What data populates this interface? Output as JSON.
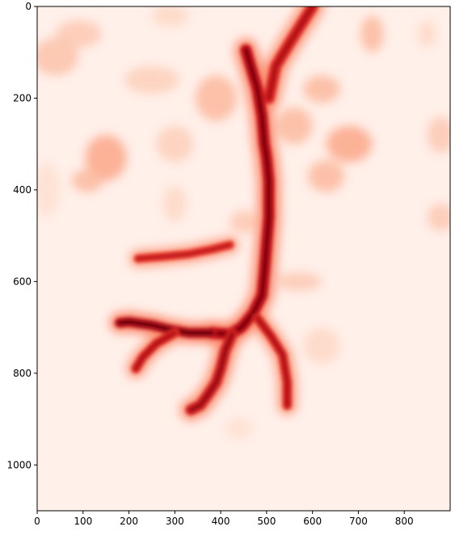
{
  "chart_data": {
    "type": "heatmap",
    "colormap": "Reds",
    "background_color": "#fff0ea",
    "title": "",
    "xlabel": "",
    "ylabel": "",
    "xlim": [
      0,
      900
    ],
    "ylim": [
      1100,
      0
    ],
    "x_ticks": [
      0,
      100,
      200,
      300,
      400,
      500,
      600,
      700,
      800
    ],
    "y_ticks": [
      0,
      200,
      400,
      600,
      800,
      1000
    ],
    "x_tick_labels": [
      "0",
      "100",
      "200",
      "300",
      "400",
      "500",
      "600",
      "700",
      "800"
    ],
    "y_tick_labels": [
      "0",
      "200",
      "400",
      "600",
      "800",
      "1000"
    ],
    "channels": [
      {
        "points": [
          [
            600,
            0
          ],
          [
            575,
            40
          ],
          [
            550,
            80
          ],
          [
            520,
            130
          ],
          [
            505,
            200
          ]
        ],
        "width": 16,
        "intensity": 0.85
      },
      {
        "points": [
          [
            455,
            95
          ],
          [
            480,
            180
          ],
          [
            490,
            240
          ],
          [
            495,
            300
          ],
          [
            500,
            330
          ],
          [
            505,
            380
          ],
          [
            505,
            420
          ],
          [
            505,
            460
          ],
          [
            500,
            520
          ],
          [
            495,
            580
          ],
          [
            490,
            630
          ],
          [
            470,
            670
          ],
          [
            445,
            700
          ],
          [
            420,
            715
          ],
          [
            380,
            712
          ]
        ],
        "width": 16,
        "intensity": 0.95
      },
      {
        "points": [
          [
            380,
            712
          ],
          [
            330,
            712
          ],
          [
            290,
            705
          ],
          [
            250,
            695
          ],
          [
            200,
            688
          ],
          [
            180,
            690
          ]
        ],
        "width": 14,
        "intensity": 1.0
      },
      {
        "points": [
          [
            300,
            712
          ],
          [
            260,
            735
          ],
          [
            230,
            765
          ],
          [
            215,
            790
          ]
        ],
        "width": 13,
        "intensity": 0.85
      },
      {
        "points": [
          [
            425,
            715
          ],
          [
            410,
            750
          ],
          [
            400,
            790
          ],
          [
            390,
            820
          ],
          [
            370,
            850
          ],
          [
            355,
            870
          ],
          [
            335,
            880
          ]
        ],
        "width": 15,
        "intensity": 0.9
      },
      {
        "points": [
          [
            220,
            550
          ],
          [
            280,
            545
          ],
          [
            330,
            540
          ],
          [
            380,
            530
          ],
          [
            420,
            520
          ]
        ],
        "width": 12,
        "intensity": 0.8
      },
      {
        "points": [
          [
            480,
            680
          ],
          [
            510,
            720
          ],
          [
            535,
            760
          ],
          [
            545,
            820
          ],
          [
            545,
            870
          ]
        ],
        "width": 13,
        "intensity": 0.85
      }
    ],
    "patches": [
      {
        "x": 150,
        "y": 330,
        "rx": 45,
        "ry": 50,
        "intensity": 0.3
      },
      {
        "x": 110,
        "y": 380,
        "rx": 35,
        "ry": 25,
        "intensity": 0.25
      },
      {
        "x": 390,
        "y": 200,
        "rx": 45,
        "ry": 50,
        "intensity": 0.25
      },
      {
        "x": 560,
        "y": 260,
        "rx": 40,
        "ry": 40,
        "intensity": 0.25
      },
      {
        "x": 620,
        "y": 180,
        "rx": 40,
        "ry": 30,
        "intensity": 0.25
      },
      {
        "x": 680,
        "y": 300,
        "rx": 50,
        "ry": 40,
        "intensity": 0.3
      },
      {
        "x": 630,
        "y": 370,
        "rx": 40,
        "ry": 35,
        "intensity": 0.25
      },
      {
        "x": 40,
        "y": 110,
        "rx": 50,
        "ry": 40,
        "intensity": 0.22
      },
      {
        "x": 90,
        "y": 60,
        "rx": 50,
        "ry": 30,
        "intensity": 0.2
      },
      {
        "x": 250,
        "y": 160,
        "rx": 60,
        "ry": 30,
        "intensity": 0.18
      },
      {
        "x": 300,
        "y": 300,
        "rx": 40,
        "ry": 40,
        "intensity": 0.18
      },
      {
        "x": 730,
        "y": 60,
        "rx": 25,
        "ry": 40,
        "intensity": 0.25
      },
      {
        "x": 880,
        "y": 280,
        "rx": 30,
        "ry": 40,
        "intensity": 0.2
      },
      {
        "x": 880,
        "y": 460,
        "rx": 30,
        "ry": 30,
        "intensity": 0.2
      },
      {
        "x": 570,
        "y": 600,
        "rx": 50,
        "ry": 20,
        "intensity": 0.2
      },
      {
        "x": 620,
        "y": 740,
        "rx": 40,
        "ry": 40,
        "intensity": 0.15
      },
      {
        "x": 450,
        "y": 470,
        "rx": 30,
        "ry": 25,
        "intensity": 0.2
      },
      {
        "x": 300,
        "y": 430,
        "rx": 25,
        "ry": 40,
        "intensity": 0.15
      },
      {
        "x": 440,
        "y": 920,
        "rx": 30,
        "ry": 25,
        "intensity": 0.12
      },
      {
        "x": 20,
        "y": 400,
        "rx": 30,
        "ry": 60,
        "intensity": 0.12
      },
      {
        "x": 290,
        "y": 20,
        "rx": 40,
        "ry": 25,
        "intensity": 0.15
      },
      {
        "x": 850,
        "y": 60,
        "rx": 20,
        "ry": 30,
        "intensity": 0.15
      }
    ]
  }
}
